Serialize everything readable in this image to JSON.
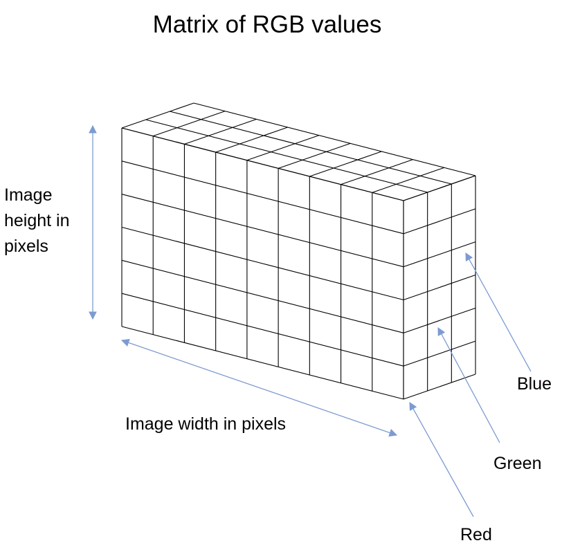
{
  "title": "Matrix of RGB values",
  "labels": {
    "height": "Image height in pixels",
    "width": "Image width in pixels",
    "red": "Red",
    "green": "Green",
    "blue": "Blue"
  },
  "grid": {
    "columns": 9,
    "rows": 6,
    "channels": 3
  },
  "colors": {
    "grid_line": "#000000",
    "arrow": "#7d9bd1"
  }
}
